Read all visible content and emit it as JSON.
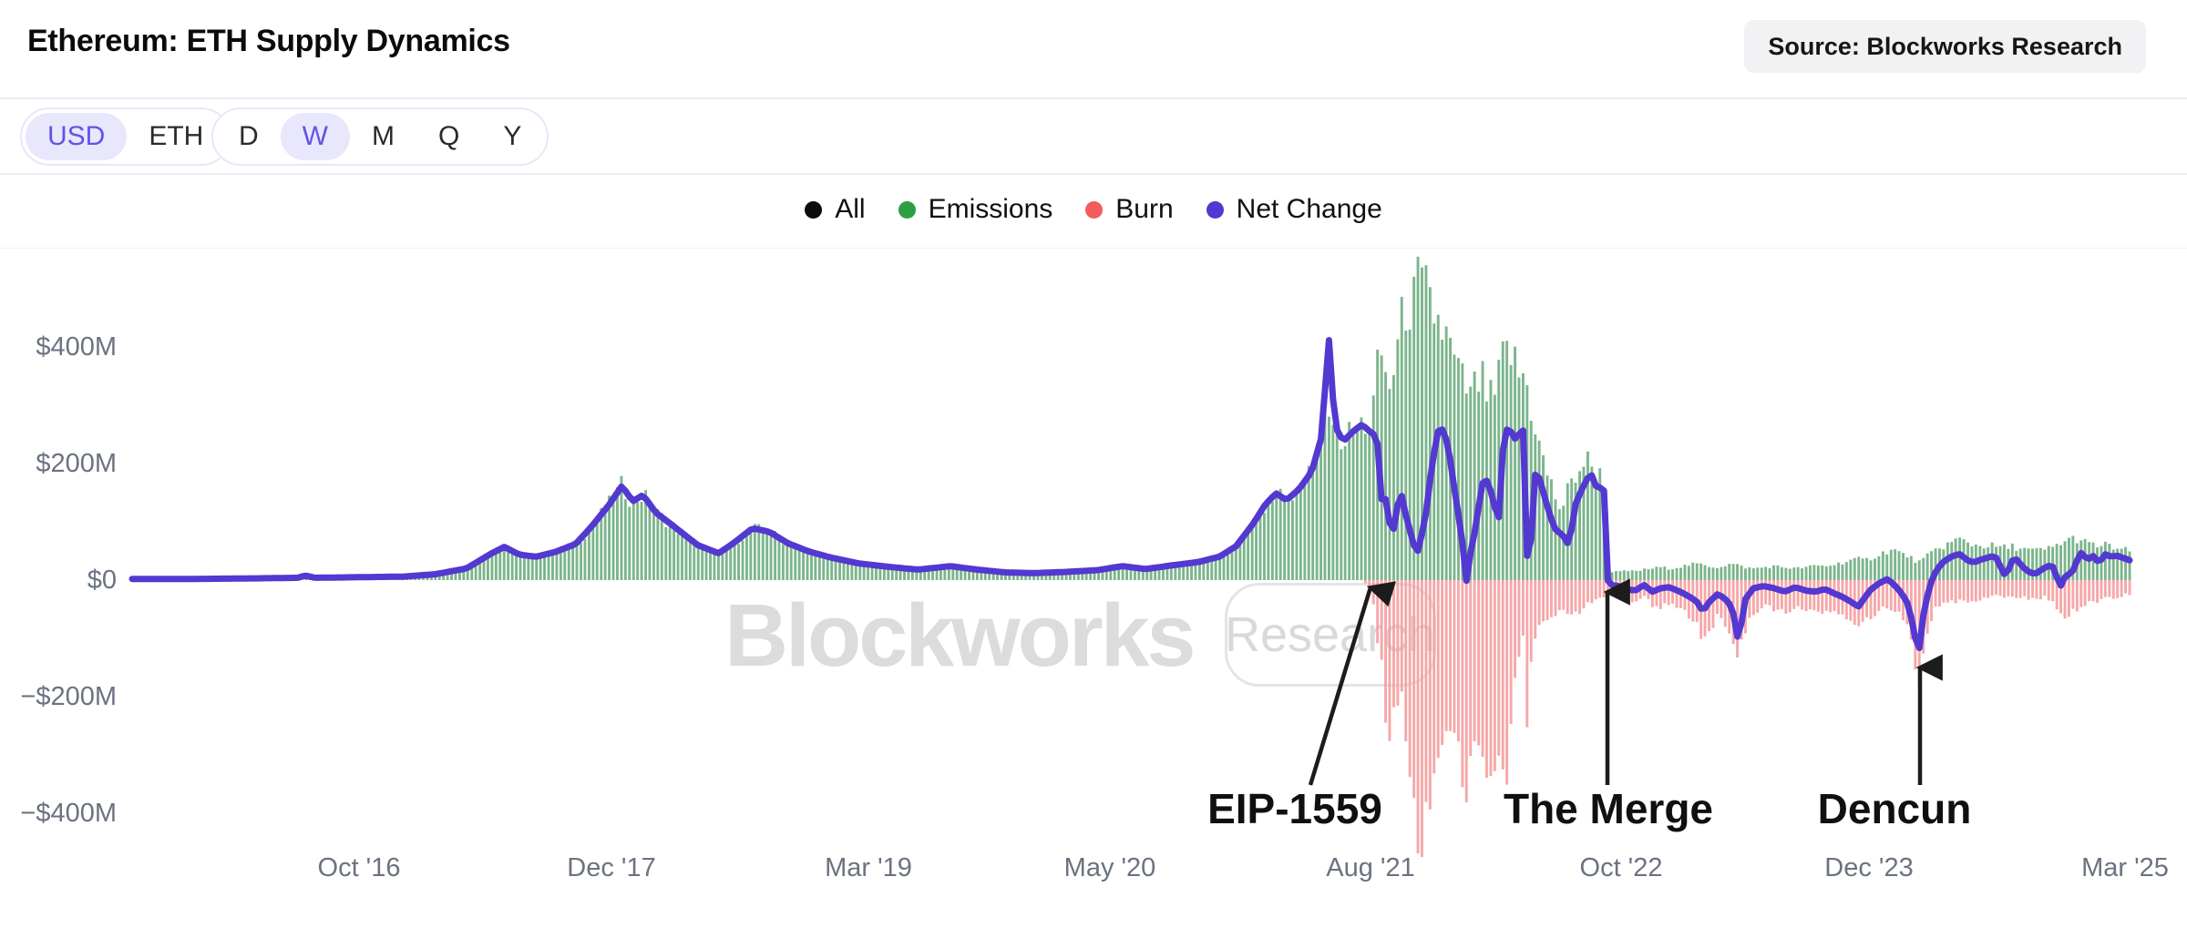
{
  "header": {
    "title": "Ethereum: ETH Supply Dynamics",
    "source_label": "Source: Blockworks Research"
  },
  "toggles": {
    "currency": {
      "options": [
        "USD",
        "ETH"
      ],
      "selected": "USD"
    },
    "interval": {
      "options": [
        "D",
        "W",
        "M",
        "Q",
        "Y"
      ],
      "selected": "W"
    }
  },
  "legend": [
    {
      "label": "All",
      "color": "#0b0b0b"
    },
    {
      "label": "Emissions",
      "color": "#2e9e44"
    },
    {
      "label": "Burn",
      "color": "#f25c5c"
    },
    {
      "label": "Net Change",
      "color": "#5338d1"
    }
  ],
  "watermark": {
    "brand": "Blockworks",
    "badge": "Research"
  },
  "chart_data": {
    "type": "bar+line",
    "title": "Ethereum: ETH Supply Dynamics",
    "unit": "USD millions per week",
    "legend_position": "top-center",
    "grid": false,
    "x_range": [
      2015.71,
      2025.21
    ],
    "ylim": [
      -470,
      560
    ],
    "colors": {
      "emissions_bar": "#5fa573",
      "burn_bar": "#f59b9c",
      "net_line": "#5338d1"
    },
    "y_ticks": [
      {
        "value": 400,
        "label": "$400M"
      },
      {
        "value": 200,
        "label": "$200M"
      },
      {
        "value": 0,
        "label": "$0"
      },
      {
        "value": -200,
        "label": "−$200M"
      },
      {
        "value": -400,
        "label": "−$400M"
      }
    ],
    "x_ticks": [
      {
        "year": 2016.79,
        "label": "Oct '16"
      },
      {
        "year": 2017.99,
        "label": "Dec '17"
      },
      {
        "year": 2019.21,
        "label": "Mar '19"
      },
      {
        "year": 2020.36,
        "label": "May '20"
      },
      {
        "year": 2021.6,
        "label": "Aug '21"
      },
      {
        "year": 2022.79,
        "label": "Oct '22"
      },
      {
        "year": 2023.97,
        "label": "Dec '23"
      },
      {
        "year": 2025.19,
        "label": "Mar '25"
      }
    ],
    "series": [
      {
        "name": "Emissions",
        "type": "bar",
        "direction": "positive"
      },
      {
        "name": "Burn",
        "type": "bar",
        "direction": "negative"
      },
      {
        "name": "Net Change",
        "type": "line"
      }
    ],
    "columns": [
      "year",
      "emissions_usd_m",
      "burn_usd_m",
      "net_change_usd_m"
    ],
    "series_points": [
      [
        2015.71,
        2,
        0,
        2
      ],
      [
        2016.0,
        2,
        0,
        2
      ],
      [
        2016.3,
        3,
        0,
        3
      ],
      [
        2016.5,
        4,
        0,
        4
      ],
      [
        2016.53,
        5,
        0,
        8
      ],
      [
        2016.58,
        4,
        0,
        4
      ],
      [
        2016.8,
        5,
        0,
        5
      ],
      [
        2017.0,
        6,
        0,
        6
      ],
      [
        2017.15,
        10,
        0,
        10
      ],
      [
        2017.3,
        20,
        0,
        20
      ],
      [
        2017.42,
        46,
        0,
        46
      ],
      [
        2017.48,
        57,
        0,
        57
      ],
      [
        2017.55,
        44,
        0,
        44
      ],
      [
        2017.63,
        40,
        0,
        40
      ],
      [
        2017.72,
        48,
        0,
        48
      ],
      [
        2017.82,
        62,
        0,
        62
      ],
      [
        2017.9,
        94,
        0,
        94
      ],
      [
        2017.98,
        130,
        0,
        130
      ],
      [
        2018.04,
        162,
        0,
        162
      ],
      [
        2018.09,
        135,
        0,
        135
      ],
      [
        2018.14,
        146,
        0,
        146
      ],
      [
        2018.2,
        116,
        0,
        116
      ],
      [
        2018.28,
        94,
        0,
        94
      ],
      [
        2018.4,
        60,
        0,
        60
      ],
      [
        2018.5,
        46,
        0,
        46
      ],
      [
        2018.58,
        66,
        0,
        66
      ],
      [
        2018.66,
        89,
        0,
        89
      ],
      [
        2018.74,
        83,
        0,
        83
      ],
      [
        2018.83,
        63,
        0,
        63
      ],
      [
        2018.93,
        49,
        0,
        49
      ],
      [
        2019.03,
        39,
        0,
        39
      ],
      [
        2019.16,
        29,
        0,
        29
      ],
      [
        2019.3,
        23,
        0,
        23
      ],
      [
        2019.45,
        18,
        0,
        18
      ],
      [
        2019.6,
        24,
        0,
        24
      ],
      [
        2019.73,
        18,
        0,
        18
      ],
      [
        2019.87,
        13,
        0,
        13
      ],
      [
        2020.0,
        12,
        0,
        12
      ],
      [
        2020.15,
        14,
        0,
        14
      ],
      [
        2020.3,
        17,
        0,
        17
      ],
      [
        2020.42,
        24,
        0,
        24
      ],
      [
        2020.53,
        19,
        0,
        19
      ],
      [
        2020.65,
        25,
        0,
        25
      ],
      [
        2020.78,
        31,
        0,
        31
      ],
      [
        2020.88,
        40,
        0,
        40
      ],
      [
        2020.96,
        58,
        0,
        58
      ],
      [
        2021.04,
        96,
        0,
        96
      ],
      [
        2021.1,
        130,
        0,
        130
      ],
      [
        2021.15,
        149,
        0,
        149
      ],
      [
        2021.2,
        137,
        0,
        137
      ],
      [
        2021.26,
        156,
        0,
        156
      ],
      [
        2021.32,
        186,
        0,
        186
      ],
      [
        2021.37,
        250,
        0,
        250
      ],
      [
        2021.4,
        320,
        0,
        424
      ],
      [
        2021.43,
        265,
        0,
        265
      ],
      [
        2021.47,
        238,
        0,
        238
      ],
      [
        2021.52,
        256,
        0,
        256
      ],
      [
        2021.56,
        267,
        0,
        267
      ],
      [
        2021.605,
        272,
        18,
        252
      ],
      [
        2021.63,
        352,
        95,
        248
      ],
      [
        2021.655,
        395,
        152,
        126
      ],
      [
        2021.68,
        322,
        283,
        145
      ],
      [
        2021.7,
        345,
        236,
        58
      ],
      [
        2021.72,
        382,
        200,
        118
      ],
      [
        2021.745,
        432,
        186,
        150
      ],
      [
        2021.77,
        478,
        262,
        108
      ],
      [
        2021.8,
        465,
        392,
        68
      ],
      [
        2021.82,
        506,
        428,
        42
      ],
      [
        2021.86,
        494,
        437,
        104
      ],
      [
        2021.89,
        464,
        338,
        193
      ],
      [
        2021.92,
        446,
        300,
        255
      ],
      [
        2021.95,
        424,
        232,
        260
      ],
      [
        2021.98,
        394,
        242,
        204
      ],
      [
        2022.01,
        360,
        288,
        128
      ],
      [
        2022.03,
        344,
        308,
        88
      ],
      [
        2022.055,
        330,
        368,
        -4
      ],
      [
        2022.08,
        308,
        298,
        58
      ],
      [
        2022.1,
        336,
        288,
        90
      ],
      [
        2022.13,
        342,
        306,
        166
      ],
      [
        2022.16,
        312,
        338,
        172
      ],
      [
        2022.185,
        304,
        366,
        130
      ],
      [
        2022.21,
        346,
        330,
        108
      ],
      [
        2022.235,
        386,
        364,
        256
      ],
      [
        2022.26,
        394,
        278,
        260
      ],
      [
        2022.285,
        372,
        178,
        242
      ],
      [
        2022.31,
        348,
        128,
        252
      ],
      [
        2022.33,
        354,
        98,
        258
      ],
      [
        2022.345,
        330,
        278,
        36
      ],
      [
        2022.36,
        300,
        138,
        32
      ],
      [
        2022.375,
        282,
        94,
        182
      ],
      [
        2022.4,
        234,
        88,
        178
      ],
      [
        2022.43,
        194,
        76,
        140
      ],
      [
        2022.46,
        162,
        64,
        104
      ],
      [
        2022.49,
        132,
        56,
        78
      ],
      [
        2022.51,
        118,
        50,
        86
      ],
      [
        2022.53,
        148,
        56,
        58
      ],
      [
        2022.55,
        160,
        66,
        74
      ],
      [
        2022.575,
        180,
        58,
        130
      ],
      [
        2022.6,
        196,
        50,
        152
      ],
      [
        2022.63,
        205,
        42,
        174
      ],
      [
        2022.65,
        196,
        38,
        182
      ],
      [
        2022.67,
        186,
        34,
        162
      ],
      [
        2022.695,
        178,
        32,
        158
      ],
      [
        2022.715,
        168,
        30,
        152
      ],
      [
        2022.725,
        24,
        28,
        2
      ],
      [
        2022.74,
        15,
        25,
        -8
      ],
      [
        2022.78,
        14,
        28,
        -10
      ],
      [
        2022.82,
        16,
        33,
        -16
      ],
      [
        2022.86,
        15,
        38,
        -18
      ],
      [
        2022.9,
        18,
        30,
        -8
      ],
      [
        2022.94,
        20,
        42,
        -20
      ],
      [
        2022.98,
        22,
        48,
        -14
      ],
      [
        2023.02,
        20,
        40,
        -12
      ],
      [
        2023.06,
        22,
        46,
        -18
      ],
      [
        2023.1,
        25,
        56,
        -25
      ],
      [
        2023.15,
        28,
        76,
        -36
      ],
      [
        2023.18,
        26,
        98,
        -54
      ],
      [
        2023.21,
        24,
        84,
        -38
      ],
      [
        2023.25,
        22,
        62,
        -24
      ],
      [
        2023.28,
        25,
        70,
        -30
      ],
      [
        2023.32,
        28,
        96,
        -46
      ],
      [
        2023.35,
        25,
        134,
        -108
      ],
      [
        2023.38,
        22,
        86,
        -34
      ],
      [
        2023.42,
        20,
        56,
        -14
      ],
      [
        2023.47,
        22,
        46,
        -10
      ],
      [
        2023.52,
        24,
        50,
        -14
      ],
      [
        2023.57,
        22,
        56,
        -20
      ],
      [
        2023.62,
        20,
        46,
        -12
      ],
      [
        2023.67,
        22,
        50,
        -18
      ],
      [
        2023.72,
        25,
        56,
        -20
      ],
      [
        2023.76,
        24,
        52,
        -15
      ],
      [
        2023.8,
        26,
        58,
        -22
      ],
      [
        2023.84,
        30,
        66,
        -28
      ],
      [
        2023.88,
        34,
        72,
        -36
      ],
      [
        2023.92,
        36,
        78,
        -46
      ],
      [
        2023.95,
        34,
        68,
        -30
      ],
      [
        2023.98,
        38,
        62,
        -16
      ],
      [
        2024.02,
        44,
        48,
        -5
      ],
      [
        2024.06,
        50,
        44,
        2
      ],
      [
        2024.09,
        52,
        50,
        -8
      ],
      [
        2024.12,
        46,
        62,
        -20
      ],
      [
        2024.15,
        42,
        74,
        -36
      ],
      [
        2024.18,
        36,
        126,
        -76
      ],
      [
        2024.205,
        30,
        208,
        -131
      ],
      [
        2024.23,
        36,
        134,
        -58
      ],
      [
        2024.26,
        44,
        76,
        -8
      ],
      [
        2024.29,
        52,
        48,
        16
      ],
      [
        2024.32,
        58,
        42,
        30
      ],
      [
        2024.36,
        64,
        38,
        40
      ],
      [
        2024.4,
        70,
        36,
        45
      ],
      [
        2024.44,
        65,
        40,
        34
      ],
      [
        2024.47,
        60,
        36,
        30
      ],
      [
        2024.5,
        60,
        34,
        35
      ],
      [
        2024.57,
        58,
        26,
        42
      ],
      [
        2024.62,
        55,
        30,
        6
      ],
      [
        2024.66,
        58,
        28,
        40
      ],
      [
        2024.72,
        52,
        30,
        16
      ],
      [
        2024.76,
        50,
        33,
        10
      ],
      [
        2024.8,
        52,
        28,
        20
      ],
      [
        2024.84,
        55,
        35,
        27
      ],
      [
        2024.875,
        62,
        60,
        -5
      ],
      [
        2024.89,
        65,
        62,
        -13
      ],
      [
        2024.91,
        68,
        58,
        16
      ],
      [
        2024.93,
        70,
        55,
        6
      ],
      [
        2024.955,
        72,
        50,
        30
      ],
      [
        2024.98,
        68,
        44,
        47
      ],
      [
        2025.01,
        62,
        40,
        35
      ],
      [
        2025.04,
        60,
        38,
        42
      ],
      [
        2025.065,
        58,
        35,
        28
      ],
      [
        2025.09,
        60,
        32,
        45
      ],
      [
        2025.12,
        58,
        30,
        40
      ],
      [
        2025.15,
        54,
        28,
        42
      ],
      [
        2025.18,
        52,
        26,
        38
      ],
      [
        2025.21,
        50,
        24,
        34
      ]
    ],
    "annotations": [
      {
        "label": "EIP-1559",
        "text_pos": [
          2021.24,
          -392
        ],
        "line_from": [
          2021.315,
          -352
        ],
        "tip": [
          2021.6,
          -12
        ]
      },
      {
        "label": "The Merge",
        "text_pos": [
          2022.73,
          -392
        ],
        "line_from": [
          2022.728,
          -352
        ],
        "tip": [
          2022.728,
          -20
        ]
      },
      {
        "label": "Dencun",
        "text_pos": [
          2024.09,
          -392
        ],
        "line_from": [
          2024.213,
          -352
        ],
        "tip": [
          2024.213,
          -150
        ]
      }
    ]
  }
}
